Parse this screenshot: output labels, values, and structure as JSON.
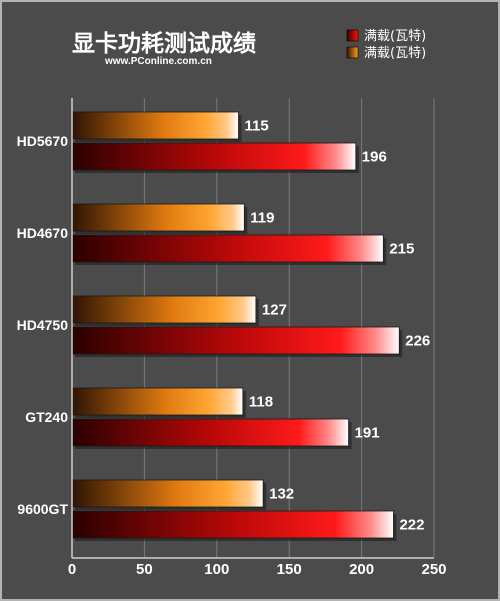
{
  "chart_data": {
    "type": "bar",
    "orientation": "horizontal",
    "title": "显卡功耗测试成绩",
    "subtitle": "www.PConline.com.cn",
    "categories": [
      "HD5670",
      "HD4670",
      "HD4750",
      "GT240",
      "9600GT"
    ],
    "series": [
      {
        "name": "满载(瓦特)",
        "color": "#ff9a1a",
        "values": [
          115,
          119,
          127,
          118,
          132
        ]
      },
      {
        "name": "满载(瓦特)",
        "color": "#e01010",
        "values": [
          196,
          215,
          226,
          191,
          222
        ]
      }
    ],
    "xlim": [
      0,
      250
    ],
    "xticks": [
      0,
      50,
      100,
      150,
      200,
      250
    ],
    "grid": true,
    "legend_position": "top-right"
  }
}
